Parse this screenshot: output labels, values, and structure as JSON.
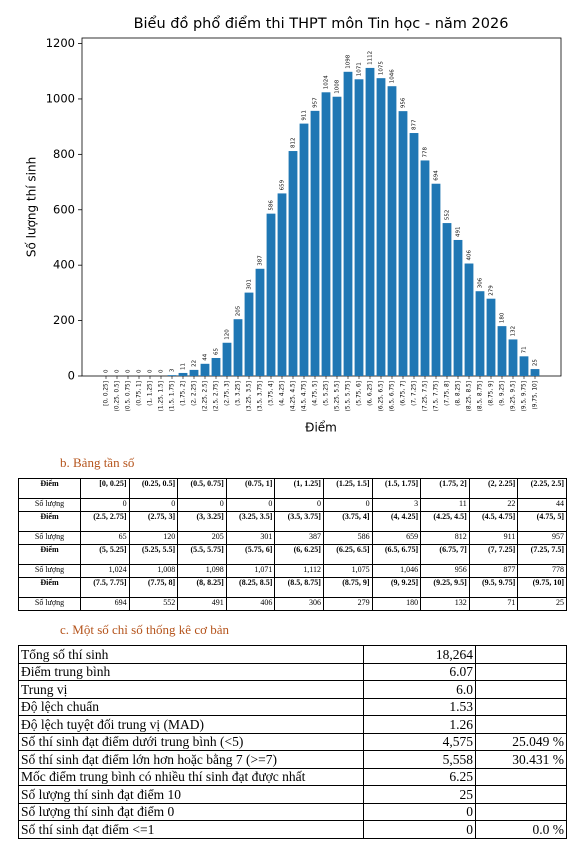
{
  "chart_data": {
    "type": "bar",
    "title": "Biểu đồ phổ điểm thi THPT môn Tin học - năm 2026",
    "x_label": "Điểm",
    "y_label": "Số lượng thí sinh",
    "categories": [
      "[0, 0.25]",
      "(0.25, 0.5]",
      "(0.5, 0.75]",
      "(0.75, 1]",
      "(1, 1.25]",
      "(1.25, 1.5]",
      "(1.5, 1.75]",
      "(1.75, 2]",
      "(2, 2.25]",
      "(2.25, 2.5]",
      "(2.5, 2.75]",
      "(2.75, 3]",
      "(3, 3.25]",
      "(3.25, 3.5]",
      "(3.5, 3.75]",
      "(3.75, 4]",
      "(4, 4.25]",
      "(4.25, 4.5]",
      "(4.5, 4.75]",
      "(4.75, 5]",
      "(5, 5.25]",
      "(5.25, 5.5]",
      "(5.5, 5.75]",
      "(5.75, 6]",
      "(6, 6.25]",
      "(6.25, 6.5]",
      "(6.5, 6.75]",
      "(6.75, 7]",
      "(7, 7.25]",
      "(7.25, 7.5]",
      "(7.5, 7.75]",
      "(7.75, 8]",
      "(8, 8.25]",
      "(8.25, 8.5]",
      "(8.5, 8.75]",
      "(8.75, 9]",
      "(9, 9.25]",
      "(9.25, 9.5]",
      "(9.5, 9.75]",
      "(9.75, 10]"
    ],
    "values": [
      0,
      0,
      0,
      0,
      0,
      0,
      3,
      11,
      22,
      44,
      65,
      120,
      205,
      301,
      387,
      586,
      659,
      812,
      911,
      957,
      1024,
      1008,
      1098,
      1071,
      1112,
      1075,
      1046,
      956,
      877,
      778,
      694,
      552,
      491,
      406,
      306,
      279,
      180,
      132,
      71,
      25
    ],
    "color": "#1f77b4",
    "ylim": [
      0,
      1220
    ],
    "yticks": [
      0,
      200,
      400,
      600,
      800,
      1000,
      1200
    ]
  },
  "frequency_table": {
    "title": "b.  Bảng tần số",
    "header_label": "Điểm",
    "count_label": "Số lượng",
    "counts": [
      "0",
      "0",
      "0",
      "0",
      "0",
      "0",
      "3",
      "11",
      "22",
      "44",
      "65",
      "120",
      "205",
      "301",
      "387",
      "586",
      "659",
      "812",
      "911",
      "957",
      "1,024",
      "1,008",
      "1,098",
      "1,071",
      "1,112",
      "1,075",
      "1,046",
      "956",
      "877",
      "778",
      "694",
      "552",
      "491",
      "406",
      "306",
      "279",
      "180",
      "132",
      "71",
      "25"
    ]
  },
  "statistics": {
    "title": "c.  Một số chỉ số thống kê cơ bản",
    "rows": [
      {
        "label": "Tổng số thí sinh",
        "value": "18,264"
      },
      {
        "label": "Điểm trung bình",
        "value": "6.07"
      },
      {
        "label": "Trung vị",
        "value": "6.0"
      },
      {
        "label": "Độ lệch chuẩn",
        "value": "1.53"
      },
      {
        "label": "Độ lệch tuyệt đối trung vị (MAD)",
        "value": "1.26"
      },
      {
        "label": "Số thí sinh đạt điểm dưới trung bình (<5)",
        "value": "4,575",
        "percent": "25.049 %"
      },
      {
        "label": "Số thí sinh đạt điểm lớn hơn hoặc bằng 7 (>=7)",
        "value": "5,558",
        "percent": "30.431 %"
      },
      {
        "label": "Mốc điểm trung bình có nhiều thí sinh đạt được nhất",
        "value": "6.25"
      },
      {
        "label": "Số lượng thí sinh đạt điểm 10",
        "value": "25"
      },
      {
        "label": "Số lượng thí sinh đạt điểm 0",
        "value": "0"
      },
      {
        "label": "Số thí sinh đạt điểm <=1",
        "value": "0",
        "percent": "0.0 %"
      }
    ]
  }
}
